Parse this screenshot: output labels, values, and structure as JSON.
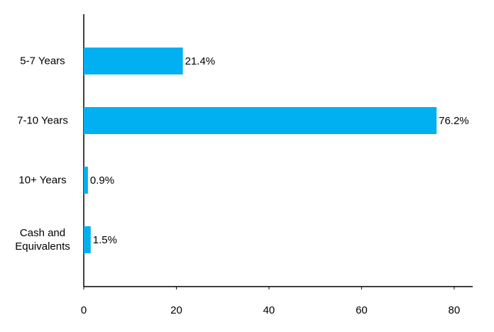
{
  "chart_data": {
    "type": "bar",
    "orientation": "horizontal",
    "categories": [
      "5-7 Years",
      "7-10 Years",
      "10+ Years",
      "Cash and Equivalents"
    ],
    "values": [
      21.4,
      76.2,
      0.9,
      1.5
    ],
    "value_labels": [
      "21.4%",
      "76.2%",
      "0.9%",
      "1.5%"
    ],
    "color": "#00b0f0",
    "xlim": [
      0,
      84
    ],
    "xticks": [
      0,
      20,
      40,
      60,
      80
    ],
    "grid": false
  }
}
